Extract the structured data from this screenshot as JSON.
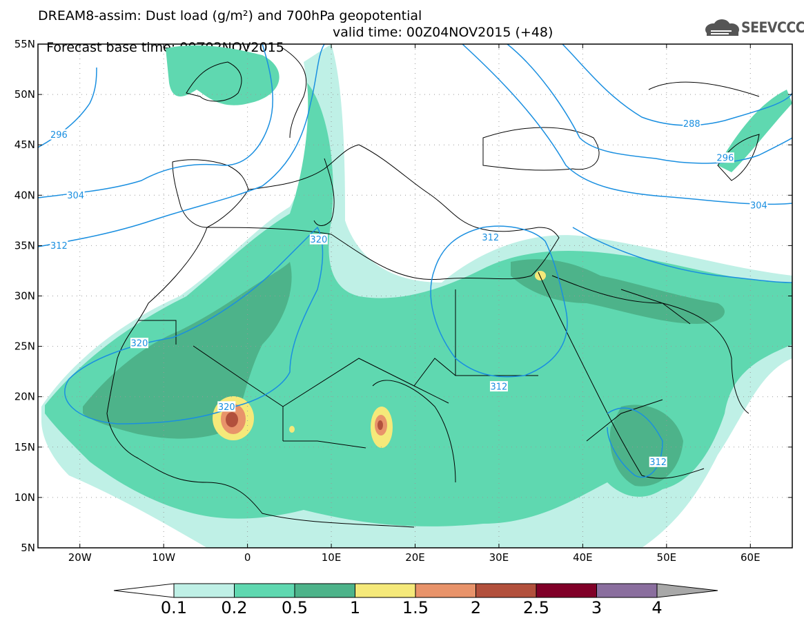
{
  "header": {
    "title_line1": "DREAM8-assim: Dust load (g/m²) and 700hPa geopotential",
    "forecast_base": "Forecast base time: 00Z02NOV2015",
    "valid_time": "valid time: 00Z04NOV2015 (+48)",
    "logo_text": "SEEVCCC"
  },
  "axes": {
    "lat_labels": [
      {
        "label": "55N",
        "lat": 55
      },
      {
        "label": "50N",
        "lat": 50
      },
      {
        "label": "45N",
        "lat": 45
      },
      {
        "label": "40N",
        "lat": 40
      },
      {
        "label": "35N",
        "lat": 35
      },
      {
        "label": "30N",
        "lat": 30
      },
      {
        "label": "25N",
        "lat": 25
      },
      {
        "label": "20N",
        "lat": 20
      },
      {
        "label": "15N",
        "lat": 15
      },
      {
        "label": "10N",
        "lat": 10
      },
      {
        "label": "5N",
        "lat": 5
      }
    ],
    "lon_labels": [
      {
        "label": "20W",
        "lon": -20
      },
      {
        "label": "10W",
        "lon": -10
      },
      {
        "label": "0",
        "lon": 0
      },
      {
        "label": "10E",
        "lon": 10
      },
      {
        "label": "20E",
        "lon": 20
      },
      {
        "label": "30E",
        "lon": 30
      },
      {
        "label": "40E",
        "lon": 40
      },
      {
        "label": "50E",
        "lon": 50
      },
      {
        "label": "60E",
        "lon": 60
      }
    ],
    "lon_range": [
      -25,
      65
    ],
    "lat_range": [
      5,
      55
    ]
  },
  "contour_labels": [
    {
      "text": "296",
      "lon": -22.5,
      "lat": 46.0
    },
    {
      "text": "304",
      "lon": -20.5,
      "lat": 40.0
    },
    {
      "text": "312",
      "lon": -22.5,
      "lat": 35.0
    },
    {
      "text": "320",
      "lon": 8.5,
      "lat": 35.6
    },
    {
      "text": "312",
      "lon": 29.0,
      "lat": 35.8
    },
    {
      "text": "288",
      "lon": 53.0,
      "lat": 47.1
    },
    {
      "text": "296",
      "lon": 57.0,
      "lat": 43.7
    },
    {
      "text": "304",
      "lon": 61.0,
      "lat": 39.0
    },
    {
      "text": "320",
      "lon": -12.9,
      "lat": 25.3
    },
    {
      "text": "320",
      "lon": -2.5,
      "lat": 19.0
    },
    {
      "text": "312",
      "lon": 30.0,
      "lat": 21.0
    },
    {
      "text": "312",
      "lon": 49.0,
      "lat": 13.5
    }
  ],
  "colorbar": {
    "labels": [
      "0.1",
      "0.2",
      "0.5",
      "1",
      "1.5",
      "2",
      "2.5",
      "3",
      "4"
    ],
    "colors": [
      "#ffffff",
      "#bff0e6",
      "#5fd8b0",
      "#4db38a",
      "#f5e97a",
      "#e8936a",
      "#b2503c",
      "#800028",
      "#8a6e9e",
      "#a8a8a8"
    ]
  }
}
